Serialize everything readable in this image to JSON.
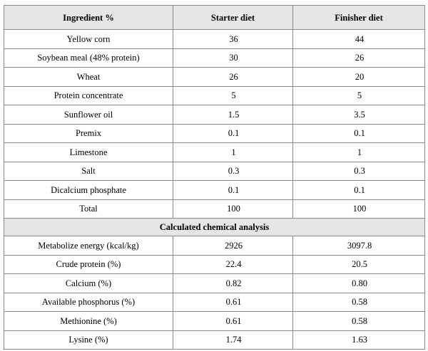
{
  "table": {
    "headers": [
      "Ingredient %",
      "Starter diet",
      "Finisher diet"
    ],
    "ingredients": [
      {
        "name": "Yellow corn",
        "starter": "36",
        "finisher": "44"
      },
      {
        "name": "Soybean meal (48% protein)",
        "starter": "30",
        "finisher": "26"
      },
      {
        "name": "Wheat",
        "starter": "26",
        "finisher": "20"
      },
      {
        "name": "Protein concentrate",
        "starter": "5",
        "finisher": "5"
      },
      {
        "name": "Sunflower oil",
        "starter": "1.5",
        "finisher": "3.5"
      },
      {
        "name": "Premix",
        "starter": "0.1",
        "finisher": "0.1"
      },
      {
        "name": "Limestone",
        "starter": "1",
        "finisher": "1"
      },
      {
        "name": "Salt",
        "starter": "0.3",
        "finisher": "0.3"
      },
      {
        "name": "Dicalcium phosphate",
        "starter": "0.1",
        "finisher": "0.1"
      },
      {
        "name": "Total",
        "starter": "100",
        "finisher": "100"
      }
    ],
    "section_title": "Calculated chemical analysis",
    "analysis": [
      {
        "name": "Metabolize energy (kcal/kg)",
        "starter": "2926",
        "finisher": "3097.8"
      },
      {
        "name": "Crude protein (%)",
        "starter": "22.4",
        "finisher": "20.5"
      },
      {
        "name": "Calcium (%)",
        "starter": "0.82",
        "finisher": "0.80"
      },
      {
        "name": "Available phosphorus (%)",
        "starter": "0.61",
        "finisher": "0.58"
      },
      {
        "name": "Methionine (%)",
        "starter": "0.61",
        "finisher": "0.58"
      },
      {
        "name": "Lysine (%)",
        "starter": "1.74",
        "finisher": "1.63"
      }
    ]
  }
}
